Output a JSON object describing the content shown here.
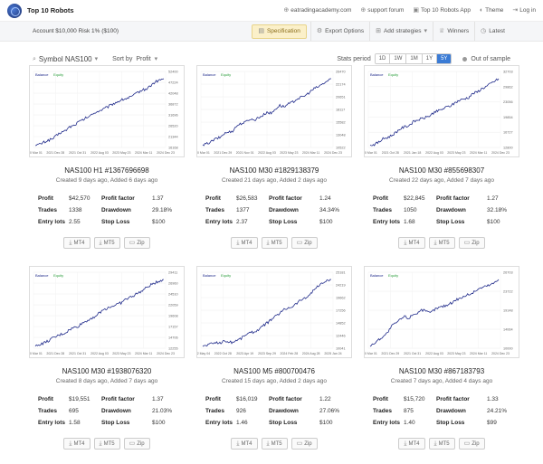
{
  "nav": {
    "brand": "Top 10 Robots",
    "links": [
      "eatradingacademy.com",
      "support forum",
      "Top 10 Robots App",
      "Theme",
      "Log in"
    ]
  },
  "account": {
    "text": "Account $10,000  Risk 1% ($100)",
    "buttons": [
      "Specification",
      "Export Options",
      "Add strategies",
      "Winners",
      "Latest"
    ]
  },
  "filters": {
    "symbol": "Symbol NAS100",
    "sort_label": "Sort by",
    "sort_value": "Profit",
    "stats_label": "Stats period",
    "periods": [
      "1D",
      "1W",
      "1M",
      "1Y",
      "5Y"
    ],
    "selected_period": "5Y",
    "out_of_sample": "Out of sample"
  },
  "cards": [
    {
      "name": "NAS100 H1 #1367696698",
      "meta": "Created 9 days ago, Added 6 days ago",
      "legend_balance": "Balance",
      "legend_equity": "Equity",
      "y_ticks": [
        "52400",
        "47224",
        "42048",
        "36872",
        "31696",
        "26520",
        "21344",
        "16168"
      ],
      "x_ticks": [
        "2020 Mar 01",
        "2021 Dec 28",
        "2021 Oct 31",
        "2022 Aug 03",
        "2023 May 23",
        "2024 Mar 11",
        "2024 Dec 23"
      ],
      "profit": "$42,570",
      "profit_factor": "1.37",
      "trades": "1338",
      "drawdown": "29.18%",
      "entry_lots": "2.55",
      "stop_loss": "$100",
      "curve": [
        0,
        0.02,
        0.05,
        0.08,
        0.1,
        0.15,
        0.2,
        0.22,
        0.28,
        0.3,
        0.35,
        0.38,
        0.42,
        0.45,
        0.5,
        0.52,
        0.55,
        0.58,
        0.62,
        0.65,
        0.68,
        0.7,
        0.72,
        0.75,
        0.8,
        0.83,
        0.85,
        0.9,
        0.95,
        0.98,
        1.0
      ]
    },
    {
      "name": "NAS100 M30 #1829138379",
      "meta": "Created 21 days ago, Added 2 days ago",
      "legend_balance": "Balance",
      "legend_equity": "Equity",
      "y_ticks": [
        "26470",
        "22174",
        "20651",
        "18117",
        "15582",
        "13048",
        "10522"
      ],
      "x_ticks": [
        "2020 Mar 01",
        "2021 Dec 29",
        "2021 Nov 01",
        "2022 Aug 03",
        "2023 May 23",
        "2024 Mar 11",
        "2024 Dec 23"
      ],
      "profit": "$26,583",
      "profit_factor": "1.24",
      "trades": "1377",
      "drawdown": "34.34%",
      "entry_lots": "2.37",
      "stop_loss": "$100",
      "curve": [
        0,
        0.03,
        0.06,
        0.1,
        0.12,
        0.18,
        0.2,
        0.22,
        0.3,
        0.33,
        0.35,
        0.4,
        0.38,
        0.42,
        0.45,
        0.5,
        0.48,
        0.55,
        0.6,
        0.58,
        0.62,
        0.65,
        0.7,
        0.72,
        0.75,
        0.8,
        0.85,
        0.88,
        0.92,
        0.96,
        1.0
      ]
    },
    {
      "name": "NAS100 M30 #855698307",
      "meta": "Created 22 days ago, Added 7 days ago",
      "legend_balance": "Balance",
      "legend_equity": "Equity",
      "y_ticks": [
        "32703",
        "29862",
        "23056",
        "19854",
        "16727",
        "12800"
      ],
      "x_ticks": [
        "2020 Mar 01",
        "2021 Oct 28",
        "2021 Jan 18",
        "2022 Aug 03",
        "2023 May 23",
        "2024 Mar 11",
        "2024 Dec 23"
      ],
      "profit": "$22,845",
      "profit_factor": "1.27",
      "trades": "1050",
      "drawdown": "32.18%",
      "entry_lots": "1.68",
      "stop_loss": "$100",
      "curve": [
        0,
        0.02,
        0.05,
        0.1,
        0.12,
        0.15,
        0.2,
        0.25,
        0.28,
        0.3,
        0.35,
        0.38,
        0.4,
        0.42,
        0.45,
        0.5,
        0.52,
        0.55,
        0.58,
        0.6,
        0.65,
        0.68,
        0.7,
        0.72,
        0.78,
        0.8,
        0.85,
        0.88,
        0.92,
        0.96,
        1.0
      ]
    },
    {
      "name": "NAS100 M30 #1938076320",
      "meta": "Created 8 days ago, Added 7 days ago",
      "legend_balance": "Balance",
      "legend_equity": "Equity",
      "y_ticks": [
        "29411",
        "26960",
        "24510",
        "22059",
        "19608",
        "17157",
        "14706",
        "12255"
      ],
      "x_ticks": [
        "2020 Mar 01",
        "2021 Dec 28",
        "2021 Oct 31",
        "2022 Aug 03",
        "2023 May 23",
        "2024 Mar 11",
        "2024 Dec 23"
      ],
      "profit": "$19,551",
      "profit_factor": "1.37",
      "trades": "695",
      "drawdown": "21.03%",
      "entry_lots": "1.58",
      "stop_loss": "$100",
      "curve": [
        0,
        0.03,
        0.05,
        0.08,
        0.12,
        0.15,
        0.18,
        0.2,
        0.25,
        0.28,
        0.3,
        0.35,
        0.38,
        0.42,
        0.45,
        0.5,
        0.55,
        0.58,
        0.6,
        0.63,
        0.65,
        0.7,
        0.73,
        0.76,
        0.8,
        0.83,
        0.88,
        0.92,
        0.95,
        0.98,
        1.0
      ]
    },
    {
      "name": "NAS100 M5 #800700476",
      "meta": "Created 15 days ago, Added 2 days ago",
      "legend_balance": "Balance",
      "legend_equity": "Equity",
      "y_ticks": [
        "25181",
        "24219",
        "19662",
        "17256",
        "14852",
        "12446",
        "10041"
      ],
      "x_ticks": [
        "2022 May 04",
        "2022 Oct 28",
        "2023 Apr 19",
        "2023 Sep 29",
        "2024 Feb 28",
        "2024 Aug 28",
        "2025 Jan 24"
      ],
      "profit": "$16,019",
      "profit_factor": "1.22",
      "trades": "926",
      "drawdown": "27.06%",
      "entry_lots": "1.46",
      "stop_loss": "$100",
      "curve": [
        0,
        0.02,
        0.04,
        0.06,
        0.05,
        0.08,
        0.07,
        0.06,
        0.1,
        0.12,
        0.18,
        0.2,
        0.22,
        0.25,
        0.3,
        0.35,
        0.4,
        0.45,
        0.5,
        0.55,
        0.58,
        0.6,
        0.65,
        0.7,
        0.72,
        0.78,
        0.85,
        0.9,
        0.95,
        0.98,
        1.0
      ]
    },
    {
      "name": "NAS100 M30 #867183793",
      "meta": "Created 7 days ago, Added 4 days ago",
      "legend_balance": "Balance",
      "legend_equity": "Equity",
      "y_ticks": [
        "26703",
        "23722",
        "19148",
        "14064",
        "10000"
      ],
      "x_ticks": [
        "2020 Mar 01",
        "2021 Dec 29",
        "2021 Oct 31",
        "2022 Aug 03",
        "2023 May 23",
        "2024 Mar 11",
        "2024 Dec 23"
      ],
      "profit": "$15,720",
      "profit_factor": "1.33",
      "trades": "875",
      "drawdown": "24.21%",
      "entry_lots": "1.40",
      "stop_loss": "$99",
      "curve": [
        0,
        0.05,
        0.1,
        0.15,
        0.2,
        0.3,
        0.35,
        0.4,
        0.45,
        0.42,
        0.48,
        0.5,
        0.55,
        0.52,
        0.5,
        0.55,
        0.58,
        0.6,
        0.62,
        0.65,
        0.7,
        0.72,
        0.75,
        0.78,
        0.8,
        0.85,
        0.88,
        0.9,
        0.92,
        0.95,
        1.0
      ]
    }
  ],
  "labels": {
    "profit": "Profit",
    "profit_factor": "Profit factor",
    "trades": "Trades",
    "drawdown": "Drawdown",
    "entry_lots": "Entry lots",
    "stop_loss": "Stop Loss"
  },
  "downloads": [
    "MT4",
    "MT5",
    "Zip"
  ],
  "colors": {
    "curve": "#1f2a8a",
    "accent": "#3a7bd5",
    "spec_bg": "#fbf0c9"
  }
}
